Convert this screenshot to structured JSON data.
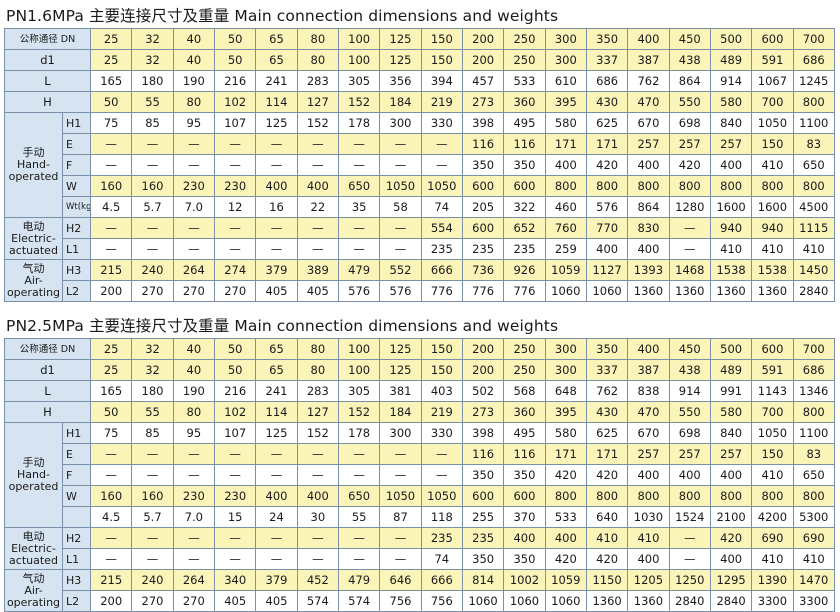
{
  "tables": [
    {
      "title": "PN1.6MPa 主要连接尺寸及重量 Main connection dimensions and weights",
      "header_label": "公称通径 DN",
      "dn": [
        "25",
        "32",
        "40",
        "50",
        "65",
        "80",
        "100",
        "125",
        "150",
        "200",
        "250",
        "300",
        "350",
        "400",
        "450",
        "500",
        "600",
        "700"
      ],
      "rows": [
        {
          "label": "d1",
          "values": [
            "25",
            "32",
            "40",
            "50",
            "65",
            "80",
            "100",
            "125",
            "150",
            "200",
            "250",
            "300",
            "337",
            "387",
            "438",
            "489",
            "591",
            "686"
          ]
        },
        {
          "label": "L",
          "values": [
            "165",
            "180",
            "190",
            "216",
            "241",
            "283",
            "305",
            "356",
            "394",
            "457",
            "533",
            "610",
            "686",
            "762",
            "864",
            "914",
            "1067",
            "1245"
          ]
        },
        {
          "label": "H",
          "values": [
            "50",
            "55",
            "80",
            "102",
            "114",
            "127",
            "152",
            "184",
            "219",
            "273",
            "360",
            "395",
            "430",
            "470",
            "550",
            "580",
            "700",
            "800"
          ]
        }
      ],
      "groups": [
        {
          "label": "手动\nHand-\noperated",
          "rows": [
            {
              "label": "H1",
              "values": [
                "75",
                "85",
                "95",
                "107",
                "125",
                "152",
                "178",
                "300",
                "330",
                "398",
                "495",
                "580",
                "625",
                "670",
                "698",
                "840",
                "1050",
                "1100"
              ]
            },
            {
              "label": "E",
              "values": [
                "—",
                "—",
                "—",
                "—",
                "—",
                "—",
                "—",
                "—",
                "—",
                "116",
                "116",
                "171",
                "171",
                "257",
                "257",
                "257",
                "150",
                "83"
              ]
            },
            {
              "label": "F",
              "values": [
                "—",
                "—",
                "—",
                "—",
                "—",
                "—",
                "—",
                "—",
                "—",
                "350",
                "350",
                "400",
                "420",
                "400",
                "420",
                "400",
                "410",
                "650"
              ]
            },
            {
              "label": "W",
              "values": [
                "160",
                "160",
                "230",
                "230",
                "400",
                "400",
                "650",
                "1050",
                "1050",
                "600",
                "600",
                "800",
                "800",
                "800",
                "800",
                "800",
                "800",
                "800"
              ]
            },
            {
              "label": "Wt(kg)",
              "values": [
                "4.5",
                "5.7",
                "7.0",
                "12",
                "16",
                "22",
                "35",
                "58",
                "74",
                "205",
                "322",
                "460",
                "576",
                "864",
                "1280",
                "1600",
                "1600",
                "4500"
              ]
            }
          ]
        },
        {
          "label": "电动\nElectric-\nactuated",
          "rows": [
            {
              "label": "H2",
              "values": [
                "—",
                "—",
                "—",
                "—",
                "—",
                "—",
                "—",
                "—",
                "554",
                "600",
                "652",
                "760",
                "770",
                "830",
                "—",
                "940",
                "940",
                "1115"
              ]
            },
            {
              "label": "L1",
              "values": [
                "—",
                "—",
                "—",
                "—",
                "—",
                "—",
                "—",
                "—",
                "235",
                "235",
                "235",
                "259",
                "400",
                "400",
                "—",
                "410",
                "410",
                "410"
              ]
            }
          ]
        },
        {
          "label": "气动\nAir-\noperating",
          "rows": [
            {
              "label": "H3",
              "values": [
                "215",
                "240",
                "264",
                "274",
                "379",
                "389",
                "479",
                "552",
                "666",
                "736",
                "926",
                "1059",
                "1127",
                "1393",
                "1468",
                "1538",
                "1538",
                "1450"
              ]
            },
            {
              "label": "L2",
              "values": [
                "200",
                "270",
                "270",
                "270",
                "405",
                "405",
                "576",
                "576",
                "776",
                "776",
                "776",
                "1060",
                "1060",
                "1360",
                "1360",
                "1360",
                "1360",
                "2840"
              ]
            }
          ]
        }
      ]
    },
    {
      "title": "PN2.5MPa 主要连接尺寸及重量 Main connection dimensions and weights",
      "header_label": "公称通径 DN",
      "dn": [
        "25",
        "32",
        "40",
        "50",
        "65",
        "80",
        "100",
        "125",
        "150",
        "200",
        "250",
        "300",
        "350",
        "400",
        "450",
        "500",
        "600",
        "700"
      ],
      "rows": [
        {
          "label": "d1",
          "values": [
            "25",
            "32",
            "40",
            "50",
            "65",
            "80",
            "100",
            "125",
            "150",
            "200",
            "250",
            "300",
            "337",
            "387",
            "438",
            "489",
            "591",
            "686"
          ]
        },
        {
          "label": "L",
          "values": [
            "165",
            "180",
            "190",
            "216",
            "241",
            "283",
            "305",
            "381",
            "403",
            "502",
            "568",
            "648",
            "762",
            "838",
            "914",
            "991",
            "1143",
            "1346"
          ]
        },
        {
          "label": "H",
          "values": [
            "50",
            "55",
            "80",
            "102",
            "114",
            "127",
            "152",
            "184",
            "219",
            "273",
            "360",
            "395",
            "430",
            "470",
            "550",
            "580",
            "700",
            "800"
          ]
        }
      ],
      "groups": [
        {
          "label": "手动\nHand-\noperated",
          "rows": [
            {
              "label": "H1",
              "values": [
                "75",
                "85",
                "95",
                "107",
                "125",
                "152",
                "178",
                "300",
                "330",
                "398",
                "495",
                "580",
                "625",
                "670",
                "698",
                "840",
                "1050",
                "1100"
              ]
            },
            {
              "label": "E",
              "values": [
                "—",
                "—",
                "—",
                "—",
                "—",
                "—",
                "—",
                "—",
                "—",
                "116",
                "116",
                "171",
                "171",
                "257",
                "257",
                "257",
                "150",
                "83"
              ]
            },
            {
              "label": "F",
              "values": [
                "—",
                "—",
                "—",
                "—",
                "—",
                "—",
                "—",
                "—",
                "—",
                "350",
                "350",
                "420",
                "420",
                "400",
                "400",
                "400",
                "410",
                "650"
              ]
            },
            {
              "label": "W",
              "values": [
                "160",
                "160",
                "230",
                "230",
                "400",
                "400",
                "650",
                "1050",
                "1050",
                "600",
                "600",
                "800",
                "800",
                "800",
                "800",
                "800",
                "800",
                "800"
              ]
            },
            {
              "label": "",
              "values": [
                "4.5",
                "5.7",
                "7.0",
                "15",
                "24",
                "30",
                "55",
                "87",
                "118",
                "255",
                "370",
                "533",
                "640",
                "1030",
                "1524",
                "2100",
                "4200",
                "5300"
              ]
            }
          ]
        },
        {
          "label": "电动\nElectric-\nactuated",
          "rows": [
            {
              "label": "H2",
              "values": [
                "—",
                "—",
                "—",
                "—",
                "—",
                "—",
                "—",
                "—",
                "235",
                "235",
                "400",
                "400",
                "410",
                "410",
                "—",
                "420",
                "690",
                "690"
              ]
            },
            {
              "label": "L1",
              "values": [
                "—",
                "—",
                "—",
                "—",
                "—",
                "—",
                "—",
                "—",
                "74",
                "350",
                "350",
                "420",
                "420",
                "400",
                "—",
                "400",
                "410",
                "410"
              ]
            }
          ]
        },
        {
          "label": "气动\nAir-\noperating",
          "rows": [
            {
              "label": "H3",
              "values": [
                "215",
                "240",
                "264",
                "340",
                "379",
                "452",
                "479",
                "646",
                "666",
                "814",
                "1002",
                "1059",
                "1150",
                "1205",
                "1250",
                "1295",
                "1390",
                "1470"
              ]
            },
            {
              "label": "L2",
              "values": [
                "200",
                "270",
                "270",
                "405",
                "405",
                "574",
                "574",
                "756",
                "756",
                "1060",
                "1060",
                "1060",
                "1360",
                "1360",
                "2840",
                "2840",
                "3300",
                "3300"
              ]
            }
          ]
        }
      ]
    }
  ]
}
